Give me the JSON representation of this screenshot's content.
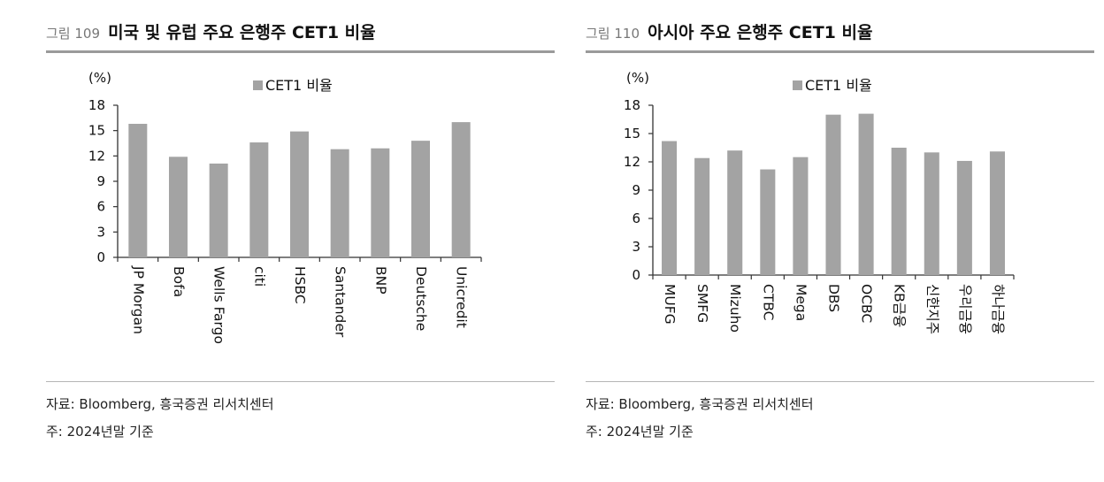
{
  "panels": [
    {
      "figure_no": "그림 109",
      "figure_title": "미국 및 유럽 주요 은행주 CET1 비율",
      "source": "자료: Bloomberg, 흥국증권 리서치센터",
      "basis": "주: 2024년말 기준"
    },
    {
      "figure_no": "그림 110",
      "figure_title": "아시아 주요 은행주 CET1 비율",
      "source": "자료: Bloomberg, 흥국증권 리서치센터",
      "basis": "주: 2024년말 기준"
    }
  ],
  "colors": {
    "bar": "#a3a3a3",
    "axis": "#333333",
    "rule": "#9a9a9a"
  },
  "chart_data": [
    {
      "type": "bar",
      "title": "",
      "ylabel": "(%)",
      "ylim": [
        0,
        18
      ],
      "yticks": [
        0,
        3,
        6,
        9,
        12,
        15,
        18
      ],
      "grid": false,
      "legend_position": "top",
      "categories": [
        "JP Morgan",
        "Bofa",
        "Wells Fargo",
        "citi",
        "HSBC",
        "Santander",
        "BNP",
        "Deutsche",
        "Unicredit"
      ],
      "series": [
        {
          "name": "CET1 비율",
          "values": [
            15.8,
            11.9,
            11.1,
            13.6,
            14.9,
            12.8,
            12.9,
            13.8,
            16.0
          ]
        }
      ]
    },
    {
      "type": "bar",
      "title": "",
      "ylabel": "(%)",
      "ylim": [
        0,
        18
      ],
      "yticks": [
        0,
        3,
        6,
        9,
        12,
        15,
        18
      ],
      "grid": false,
      "legend_position": "top",
      "categories": [
        "MUFG",
        "SMFG",
        "Mizuho",
        "CTBC",
        "Mega",
        "DBS",
        "OCBC",
        "KB금융",
        "신한지주",
        "우리금융",
        "하나금융"
      ],
      "series": [
        {
          "name": "CET1 비율",
          "values": [
            14.2,
            12.4,
            13.2,
            11.2,
            12.5,
            17.0,
            17.1,
            13.5,
            13.0,
            12.1,
            13.1
          ]
        }
      ]
    }
  ]
}
